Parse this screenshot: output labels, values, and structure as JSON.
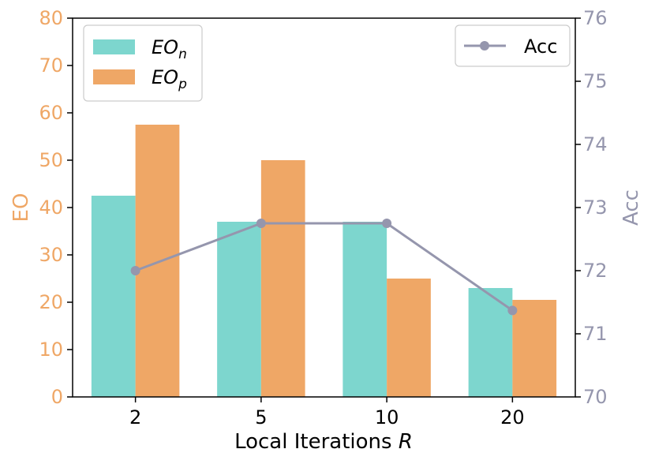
{
  "chart_data": {
    "type": "bar",
    "categories": [
      "2",
      "5",
      "10",
      "20"
    ],
    "xlabel": "Local Iterations R",
    "ylabel_left": "EO",
    "ylabel_right": "Acc",
    "ylim_left": [
      0,
      80
    ],
    "ylim_right": [
      70,
      76
    ],
    "yticks_left": [
      "0",
      "10",
      "20",
      "30",
      "40",
      "50",
      "60",
      "70",
      "80"
    ],
    "yticks_right": [
      "70",
      "71",
      "72",
      "73",
      "74",
      "75",
      "76"
    ],
    "grid": false,
    "series": [
      {
        "name": "EOn",
        "axis": "left",
        "type": "bar",
        "color": "#7DD6CE",
        "values": [
          42.5,
          37,
          37,
          23
        ]
      },
      {
        "name": "EOp",
        "axis": "left",
        "type": "bar",
        "color": "#EFA766",
        "values": [
          57.5,
          50,
          25,
          20.5
        ]
      },
      {
        "name": "Acc",
        "axis": "right",
        "type": "line",
        "color": "#9596AD",
        "values": [
          72.0,
          72.75,
          72.75,
          71.37
        ]
      }
    ],
    "legends": [
      {
        "placement": "top-left",
        "entries": [
          "EOn",
          "EOp"
        ]
      },
      {
        "placement": "top-right",
        "entries": [
          "Acc"
        ]
      }
    ]
  },
  "labels": {
    "eo_n_main": "EO",
    "eo_n_sub": "n",
    "eo_p_main": "EO",
    "eo_p_sub": "p",
    "acc": "Acc",
    "xlabel_main": "Local Iterations ",
    "xlabel_var": "R",
    "ylabel_left": "EO",
    "ylabel_right": "Acc"
  }
}
